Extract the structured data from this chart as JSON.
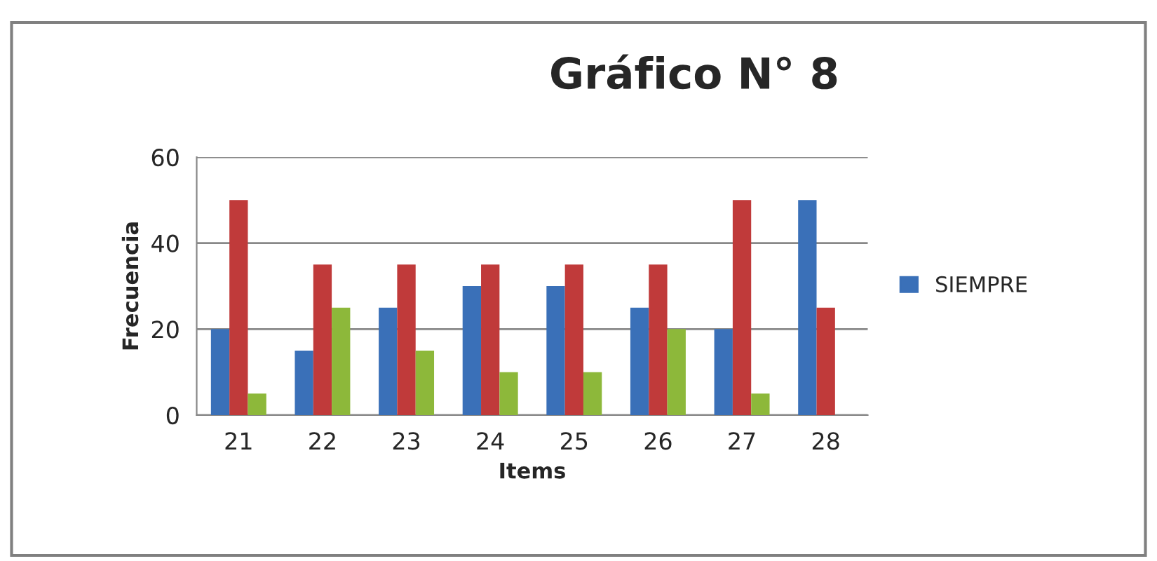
{
  "chart_data": {
    "type": "bar",
    "title": "Gráfico N° 8",
    "xlabel": "Items",
    "ylabel": "Frecuencia",
    "categories": [
      "21",
      "22",
      "23",
      "24",
      "25",
      "26",
      "27",
      "28"
    ],
    "series": [
      {
        "name": "SIEMPRE",
        "color": "#3a70b8",
        "values": [
          20,
          15,
          25,
          30,
          30,
          25,
          20,
          50
        ]
      },
      {
        "color": "#c03a3a",
        "values": [
          50,
          35,
          35,
          35,
          35,
          35,
          50,
          25
        ]
      },
      {
        "color": "#8db83a",
        "values": [
          5,
          25,
          15,
          10,
          10,
          20,
          5,
          null
        ]
      }
    ],
    "ylim": [
      0,
      60
    ],
    "yticks": [
      0,
      20,
      40,
      60
    ],
    "grid": "y",
    "legend": "right"
  }
}
